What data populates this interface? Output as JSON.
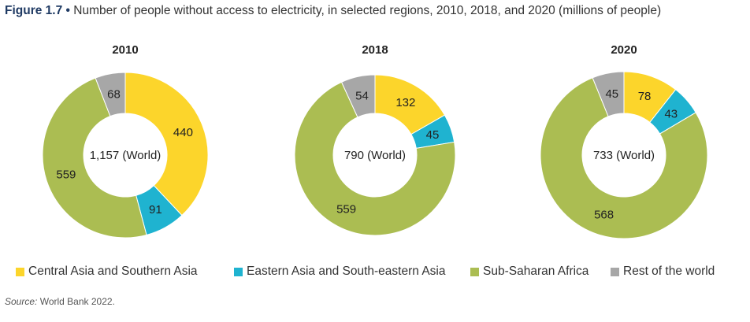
{
  "header": {
    "figure_label": "Figure 1.7",
    "bullet": "•",
    "title_text": "Number of people without access to electricity, in selected regions, 2010, 2018, and 2020 (millions of people)"
  },
  "legend": {
    "items": [
      {
        "label": "Central Asia and Southern Asia",
        "color": "#fcd52b"
      },
      {
        "label": "Eastern Asia and South-eastern Asia",
        "color": "#1fb3d0"
      },
      {
        "label": "Sub-Saharan Africa",
        "color": "#abbd52"
      },
      {
        "label": "Rest of the world",
        "color": "#a7a7a7"
      }
    ]
  },
  "source": {
    "prefix": "Source:",
    "text": "World Bank 2022."
  },
  "chart_data": [
    {
      "type": "pie",
      "style": "donut",
      "title": "2010",
      "center_label": "1,157 (World)",
      "categories": [
        "Central Asia and Southern Asia",
        "Eastern Asia and South-eastern Asia",
        "Sub-Saharan Africa",
        "Rest of the world"
      ],
      "values": [
        440,
        91,
        559,
        68
      ],
      "value_labels": [
        "440",
        "91",
        "559",
        "68"
      ],
      "colors": [
        "#fcd52b",
        "#1fb3d0",
        "#abbd52",
        "#a7a7a7"
      ]
    },
    {
      "type": "pie",
      "style": "donut",
      "title": "2018",
      "center_label": "790 (World)",
      "categories": [
        "Central Asia and Southern Asia",
        "Eastern Asia and South-eastern Asia",
        "Sub-Saharan Africa",
        "Rest of the world"
      ],
      "values": [
        132,
        45,
        559,
        54
      ],
      "value_labels": [
        "132",
        "45",
        "559",
        "54"
      ],
      "colors": [
        "#fcd52b",
        "#1fb3d0",
        "#abbd52",
        "#a7a7a7"
      ]
    },
    {
      "type": "pie",
      "style": "donut",
      "title": "2020",
      "center_label": "733 (World)",
      "categories": [
        "Central Asia and Southern Asia",
        "Eastern Asia and South-eastern Asia",
        "Sub-Saharan Africa",
        "Rest of the world"
      ],
      "values": [
        78,
        43,
        568,
        45
      ],
      "value_labels": [
        "78",
        "43",
        "568",
        "45"
      ],
      "colors": [
        "#fcd52b",
        "#1fb3d0",
        "#abbd52",
        "#a7a7a7"
      ]
    }
  ]
}
